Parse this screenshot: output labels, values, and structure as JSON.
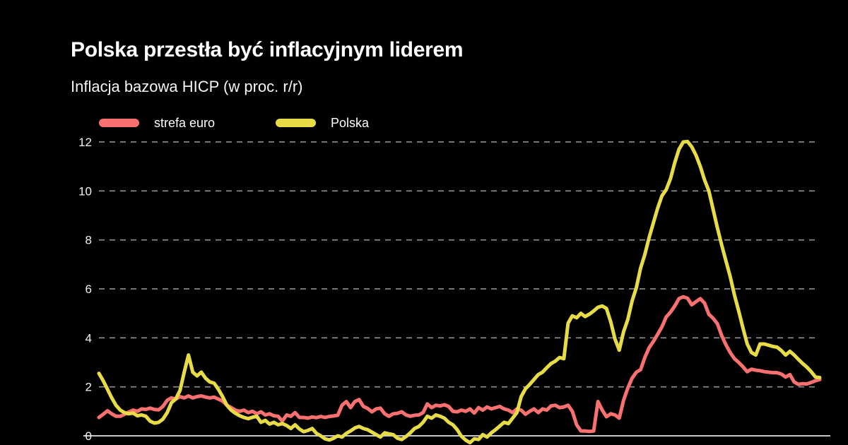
{
  "header": {
    "title": "Polska przestła być inflacyjnym liderem",
    "subtitle": "Inflacja bazowa HICP (w proc. r/r)"
  },
  "legend": {
    "euro_label": "strefa euro",
    "poland_label": "Polska"
  },
  "colors": {
    "background": "#000000",
    "euro_line": "#F97070",
    "poland_line": "#E8DC46",
    "gridline": "#8F8F8F",
    "baseline": "#C6C6C6",
    "text": "#FFFFFF"
  },
  "chart_data": {
    "type": "line",
    "title": "Polska przestła być inflacyjnym liderem",
    "subtitle": "Inflacja bazowa HICP (w proc. r/r)",
    "ylabel": "",
    "xlabel": "",
    "ylim": [
      -0.35,
      12.3
    ],
    "yticks": [
      0,
      2,
      4,
      6,
      8,
      10,
      12
    ],
    "grid": "dashed horizontal",
    "legend_position": "top-left",
    "x_note": "monthly observations, axis labels cropped out of view",
    "series": [
      {
        "name": "strefa euro",
        "color": "#F97070",
        "values": [
          0.75,
          0.88,
          1.02,
          0.9,
          0.8,
          0.8,
          0.88,
          0.97,
          1.05,
          1.0,
          1.1,
          1.08,
          1.13,
          1.08,
          1.06,
          1.2,
          1.45,
          1.55,
          1.5,
          1.6,
          1.55,
          1.63,
          1.55,
          1.6,
          1.63,
          1.58,
          1.55,
          1.58,
          1.5,
          1.42,
          1.25,
          1.15,
          1.05,
          1.0,
          1.05,
          0.95,
          1.0,
          0.9,
          0.98,
          0.85,
          0.9,
          0.82,
          0.8,
          0.6,
          0.85,
          0.8,
          0.95,
          0.75,
          0.75,
          0.72,
          0.77,
          0.74,
          0.79,
          0.75,
          0.79,
          0.81,
          0.84,
          1.25,
          1.4,
          1.15,
          1.4,
          1.48,
          1.2,
          1.12,
          0.98,
          1.1,
          1.13,
          0.9,
          0.8,
          0.9,
          0.92,
          0.98,
          0.85,
          0.8,
          0.84,
          0.85,
          0.95,
          1.3,
          1.15,
          1.25,
          1.22,
          1.27,
          1.2,
          1.0,
          0.98,
          1.05,
          1.0,
          1.1,
          0.93,
          1.15,
          1.05,
          1.18,
          1.1,
          1.15,
          1.2,
          1.1,
          1.05,
          0.95,
          1.1,
          1.05,
          0.88,
          1.0,
          1.1,
          0.95,
          1.1,
          1.05,
          1.22,
          1.25,
          1.15,
          1.18,
          1.25,
          1.0,
          0.45,
          0.2,
          0.2,
          0.18,
          0.2,
          1.4,
          1.05,
          0.78,
          0.9,
          0.85,
          0.72,
          1.45,
          1.95,
          2.35,
          2.6,
          2.7,
          3.2,
          3.6,
          3.85,
          4.15,
          4.45,
          4.85,
          5.05,
          5.3,
          5.6,
          5.68,
          5.62,
          5.35,
          5.48,
          5.6,
          5.42,
          4.96,
          4.8,
          4.58,
          4.1,
          3.72,
          3.4,
          3.15,
          3.0,
          2.82,
          2.62,
          2.72,
          2.68,
          2.66,
          2.62,
          2.6,
          2.58,
          2.58,
          2.52,
          2.4,
          2.5,
          2.2,
          2.1,
          2.13,
          2.12,
          2.18,
          2.25,
          2.3
        ]
      },
      {
        "name": "Polska",
        "color": "#E8DC46",
        "values": [
          2.55,
          2.25,
          1.9,
          1.55,
          1.25,
          1.05,
          0.95,
          0.9,
          0.93,
          0.82,
          0.85,
          0.8,
          0.6,
          0.52,
          0.55,
          0.68,
          0.95,
          1.35,
          1.5,
          1.85,
          2.6,
          3.3,
          2.6,
          2.45,
          2.6,
          2.35,
          2.2,
          2.15,
          1.9,
          1.6,
          1.25,
          1.05,
          0.92,
          0.82,
          0.75,
          0.7,
          0.76,
          0.8,
          0.55,
          0.63,
          0.48,
          0.55,
          0.45,
          0.5,
          0.42,
          0.3,
          0.45,
          0.28,
          0.17,
          0.22,
          0.3,
          0.1,
          0.0,
          -0.12,
          -0.17,
          -0.1,
          0.0,
          -0.05,
          0.1,
          0.2,
          0.32,
          0.38,
          0.3,
          0.25,
          0.15,
          0.05,
          -0.05,
          0.12,
          0.08,
          0.05,
          -0.1,
          -0.15,
          -0.03,
          0.12,
          0.3,
          0.38,
          0.55,
          0.8,
          0.72,
          0.85,
          0.8,
          0.72,
          0.55,
          0.45,
          0.25,
          -0.02,
          -0.18,
          -0.28,
          -0.12,
          -0.15,
          0.05,
          -0.05,
          0.12,
          0.25,
          0.4,
          0.55,
          0.5,
          0.72,
          0.95,
          1.6,
          1.92,
          2.1,
          2.3,
          2.5,
          2.6,
          2.78,
          2.95,
          3.05,
          3.2,
          3.15,
          4.6,
          4.9,
          4.82,
          5.0,
          4.87,
          4.97,
          5.1,
          5.25,
          5.3,
          5.2,
          4.65,
          3.95,
          3.5,
          4.25,
          4.75,
          5.5,
          6.05,
          6.85,
          7.4,
          8.1,
          8.7,
          9.3,
          9.8,
          10.05,
          10.5,
          11.15,
          11.7,
          12.0,
          12.02,
          11.8,
          11.45,
          11.0,
          10.45,
          10.0,
          9.25,
          8.5,
          7.8,
          7.15,
          6.5,
          5.75,
          5.1,
          4.4,
          3.75,
          3.4,
          3.3,
          3.75,
          3.75,
          3.7,
          3.65,
          3.62,
          3.48,
          3.3,
          3.45,
          3.3,
          3.12,
          2.95,
          2.8,
          2.62,
          2.4,
          2.38
        ]
      }
    ]
  }
}
